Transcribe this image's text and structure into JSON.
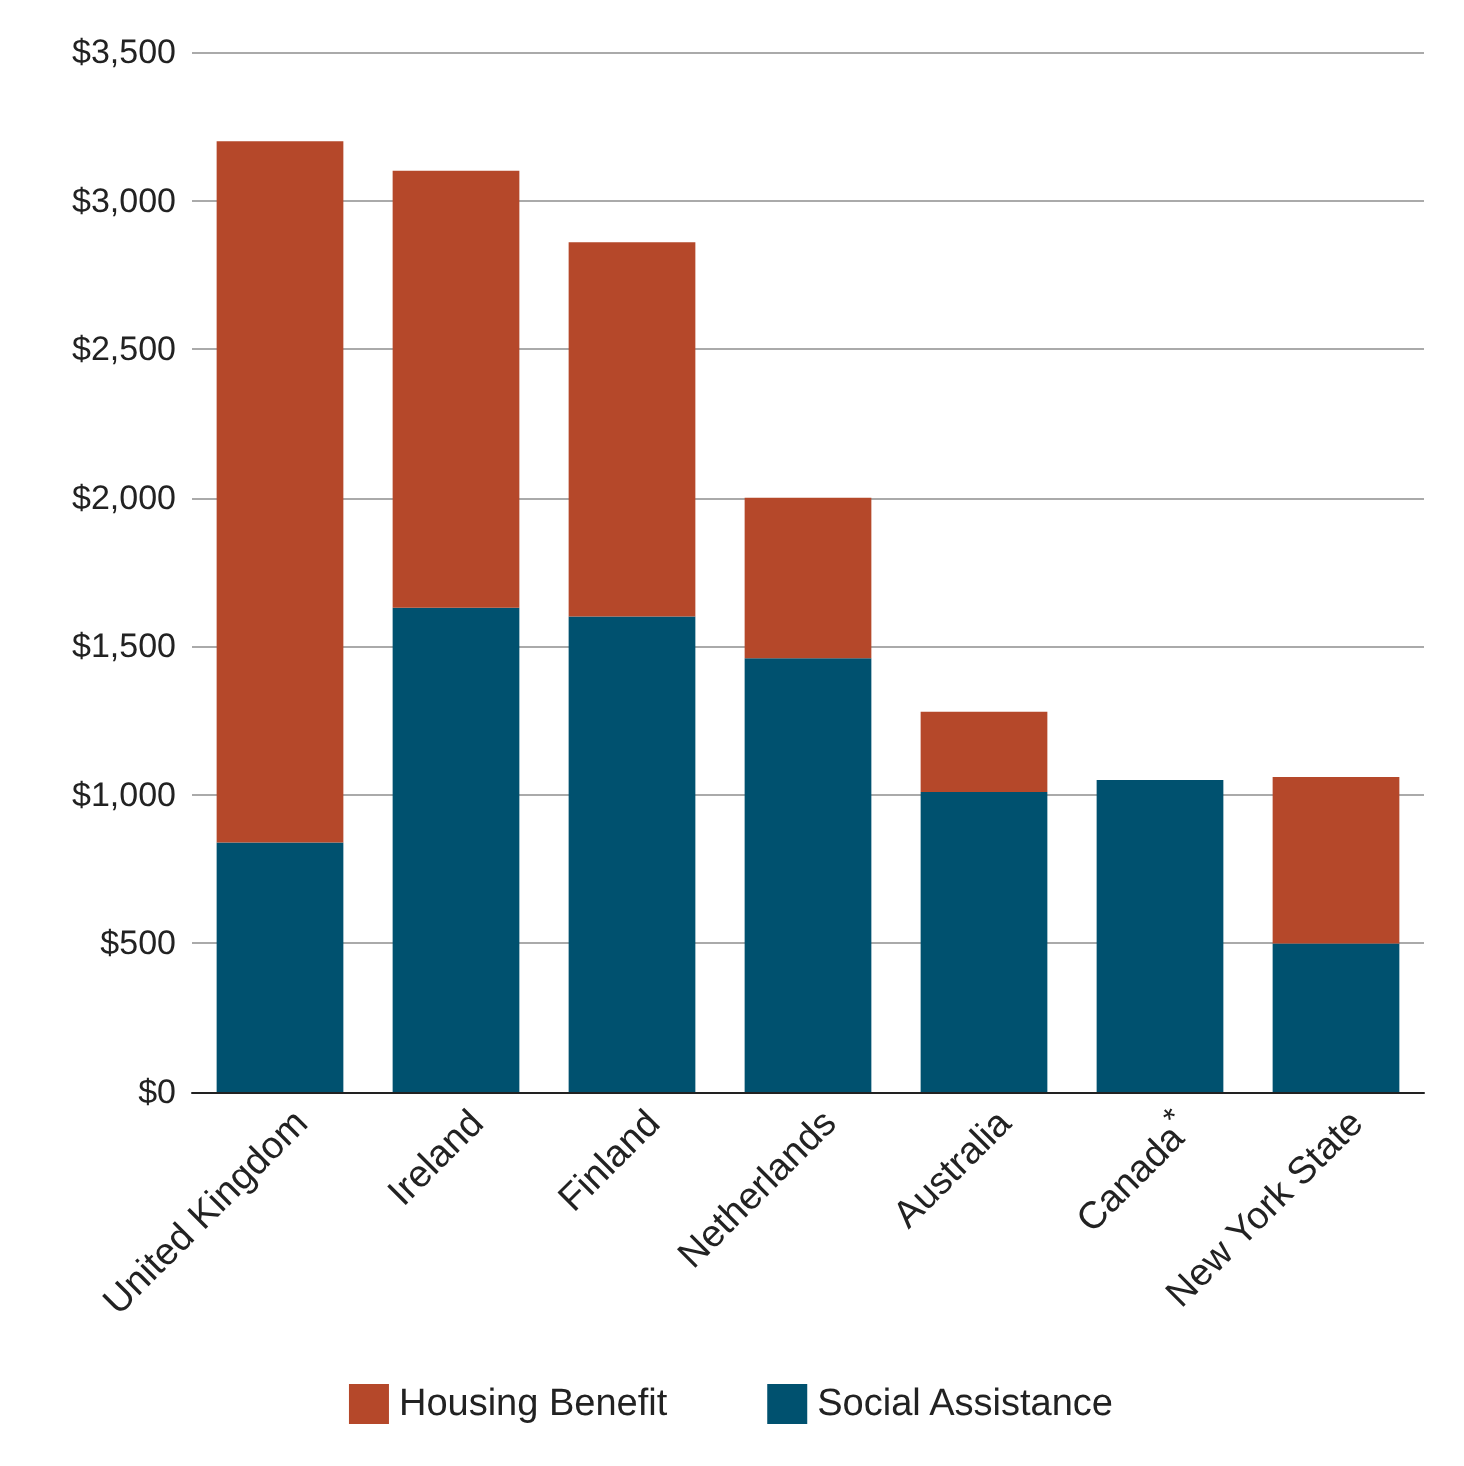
{
  "chart_data": {
    "type": "bar",
    "stacked": true,
    "categories": [
      "United Kingdom",
      "Ireland",
      "Finland",
      "Netherlands",
      "Australia",
      "Canada$^{*}$",
      "New York State"
    ],
    "series": [
      {
        "name": "Social Assistance",
        "color": "#00516f",
        "values": [
          840,
          1630,
          1600,
          1460,
          1010,
          1050,
          500
        ]
      },
      {
        "name": "Housing Benefit",
        "color": "#b5482a",
        "values": [
          2360,
          1470,
          1260,
          540,
          270,
          0,
          560
        ]
      }
    ],
    "ylim": [
      0,
      3500
    ],
    "yticks": [
      {
        "value": 0,
        "label": "$0"
      },
      {
        "value": 500,
        "label": "$500"
      },
      {
        "value": 1000,
        "label": "$1,000"
      },
      {
        "value": 1500,
        "label": "$1,500"
      },
      {
        "value": 2000,
        "label": "$2,000"
      },
      {
        "value": 2500,
        "label": "$2,500"
      },
      {
        "value": 3000,
        "label": "$3,000"
      },
      {
        "value": 3500,
        "label": "$3,500"
      }
    ],
    "grid": "y",
    "legend": "bottom"
  }
}
